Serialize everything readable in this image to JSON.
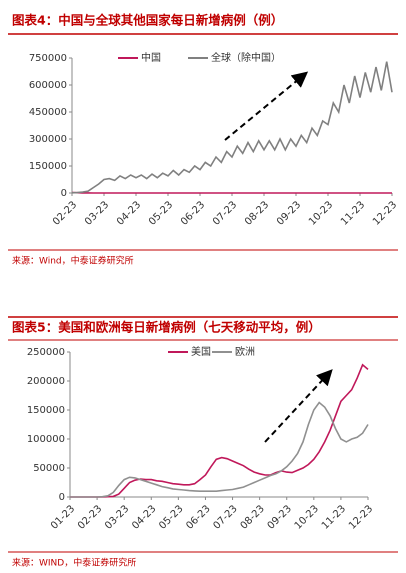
{
  "chart_data": [
    {
      "type": "line",
      "title": "图表4：中国与全球其他国家每日新增病例（例）",
      "source": "来源：Wind，中泰证券研究所",
      "categories": [
        "02-23",
        null,
        null,
        null,
        null,
        null,
        "03-23",
        null,
        null,
        null,
        null,
        null,
        "04-23",
        null,
        null,
        null,
        null,
        null,
        "05-23",
        null,
        null,
        null,
        null,
        null,
        "06-23",
        null,
        null,
        null,
        null,
        null,
        "07-23",
        null,
        null,
        null,
        null,
        null,
        "08-23",
        null,
        null,
        null,
        null,
        null,
        "09-23",
        null,
        null,
        null,
        null,
        null,
        "10-23",
        null,
        null,
        null,
        null,
        null,
        "11-23",
        null,
        null,
        null,
        null,
        null,
        "12-23"
      ],
      "series": [
        {
          "name": "中国",
          "color": "#c0185a",
          "values": [
            2000,
            1500,
            800,
            400,
            200,
            100,
            100,
            80,
            60,
            50,
            50,
            40,
            40,
            30,
            20,
            20,
            10,
            10,
            10,
            10,
            10,
            10,
            10,
            10,
            20,
            20,
            20,
            30,
            30,
            40,
            50,
            60,
            80,
            100,
            100,
            80,
            60,
            50,
            40,
            30,
            20,
            20,
            20,
            20,
            20,
            20,
            20,
            20,
            20,
            20,
            20,
            20,
            30,
            30,
            30,
            30,
            30,
            40,
            40,
            40,
            40
          ]
        },
        {
          "name": "全球（除中国）",
          "color": "#808080",
          "values": [
            1000,
            2000,
            5000,
            10000,
            30000,
            50000,
            75000,
            80000,
            70000,
            95000,
            80000,
            100000,
            85000,
            100000,
            80000,
            105000,
            85000,
            110000,
            95000,
            125000,
            100000,
            130000,
            115000,
            150000,
            130000,
            170000,
            150000,
            200000,
            170000,
            230000,
            200000,
            260000,
            220000,
            280000,
            230000,
            290000,
            240000,
            290000,
            240000,
            300000,
            240000,
            300000,
            260000,
            320000,
            280000,
            360000,
            320000,
            400000,
            380000,
            500000,
            450000,
            600000,
            500000,
            650000,
            530000,
            670000,
            560000,
            700000,
            570000,
            730000,
            560000
          ]
        }
      ],
      "ylim": [
        0,
        750000
      ],
      "yticks": [
        0,
        150000,
        300000,
        450000,
        600000,
        750000
      ]
    },
    {
      "type": "line",
      "title": "图表5：美国和欧洲每日新增病例（七天移动平均，例）",
      "source": "来源：WIND，中泰证券研究所",
      "categories": [
        "01-23",
        null,
        null,
        null,
        null,
        "02-23",
        null,
        null,
        null,
        null,
        "03-23",
        null,
        null,
        null,
        null,
        "04-23",
        null,
        null,
        null,
        null,
        "05-23",
        null,
        null,
        null,
        null,
        "06-23",
        null,
        null,
        null,
        null,
        "07-23",
        null,
        null,
        null,
        null,
        "08-23",
        null,
        null,
        null,
        null,
        "09-23",
        null,
        null,
        null,
        null,
        "10-23",
        null,
        null,
        null,
        null,
        "11-23",
        null,
        null,
        null,
        null,
        "12-23"
      ],
      "series": [
        {
          "name": "美国",
          "color": "#c0185a",
          "values": [
            0,
            0,
            0,
            0,
            0,
            0,
            0,
            500,
            1000,
            5000,
            15000,
            25000,
            29000,
            31000,
            30000,
            30000,
            28000,
            27000,
            25000,
            23000,
            22000,
            21000,
            21000,
            23000,
            30000,
            38000,
            52000,
            65000,
            68000,
            66000,
            62000,
            58000,
            54000,
            48000,
            43000,
            40000,
            38000,
            38000,
            42000,
            45000,
            43000,
            42000,
            46000,
            50000,
            56000,
            65000,
            78000,
            95000,
            115000,
            140000,
            165000,
            175000,
            185000,
            205000,
            228000,
            220000
          ]
        },
        {
          "name": "欧洲",
          "color": "#909090",
          "values": [
            0,
            0,
            0,
            0,
            0,
            0,
            500,
            2000,
            8000,
            20000,
            30000,
            34000,
            33000,
            30000,
            27000,
            24000,
            21000,
            18000,
            16000,
            14000,
            13000,
            12000,
            11000,
            10500,
            10000,
            10000,
            10000,
            10000,
            11000,
            12000,
            13000,
            15000,
            17000,
            21000,
            25000,
            29000,
            33000,
            37000,
            40000,
            45000,
            52000,
            62000,
            75000,
            95000,
            125000,
            150000,
            163000,
            155000,
            140000,
            118000,
            100000,
            95000,
            100000,
            103000,
            110000,
            125000
          ]
        }
      ],
      "ylim": [
        0,
        250000
      ],
      "yticks": [
        0,
        50000,
        100000,
        150000,
        200000,
        250000
      ]
    }
  ]
}
